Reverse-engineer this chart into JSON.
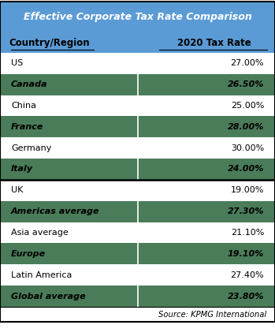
{
  "title": "Effective Corporate Tax Rate Comparison",
  "header": [
    "Country/Region",
    "2020 Tax Rate"
  ],
  "rows": [
    [
      "US",
      "27.00%"
    ],
    [
      "Canada",
      "26.50%"
    ],
    [
      "China",
      "25.00%"
    ],
    [
      "France",
      "28.00%"
    ],
    [
      "Germany",
      "30.00%"
    ],
    [
      "Italy",
      "24.00%"
    ],
    [
      "UK",
      "19.00%"
    ],
    [
      "Americas average",
      "27.30%"
    ],
    [
      "Asia average",
      "21.10%"
    ],
    [
      "Europe",
      "19.10%"
    ],
    [
      "Latin America",
      "27.40%"
    ],
    [
      "Global average",
      "23.80%"
    ]
  ],
  "bold_rows": [
    1,
    3,
    5,
    7,
    9,
    11
  ],
  "highlighted_rows": [
    1,
    3,
    5,
    7,
    9,
    11
  ],
  "highlight_color": "#4a7c59",
  "title_bg_color": "#5b9bd5",
  "header_bg_color": "#5b9bd5",
  "white_bg": "#ffffff",
  "light_bg": "#f2f2f2",
  "source_text": "Source: KPMG International",
  "separator_after_row_index": 6,
  "title_color": "#ffffff",
  "header_text_color": "#000000",
  "normal_text_color": "#000000"
}
